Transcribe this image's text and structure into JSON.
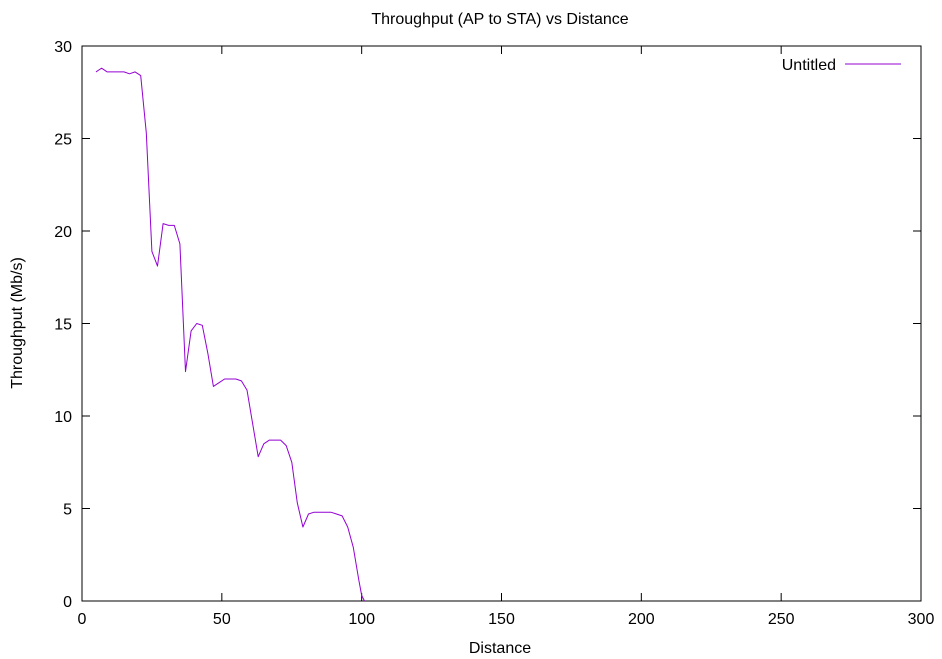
{
  "chart_data": {
    "type": "line",
    "title": "Throughput (AP to STA) vs Distance",
    "xlabel": "Distance",
    "ylabel": "Throughput (Mb/s)",
    "xlim": [
      0,
      300
    ],
    "ylim": [
      0,
      30
    ],
    "xticks": [
      "0",
      "50",
      "100",
      "150",
      "200",
      "250",
      "300"
    ],
    "yticks": [
      "0",
      "5",
      "10",
      "15",
      "20",
      "25",
      "30"
    ],
    "grid": false,
    "legend_position": "top-right",
    "series": [
      {
        "name": "Untitled",
        "color": "#9400d3",
        "x": [
          5,
          6,
          7,
          9,
          11,
          13,
          15,
          17,
          19,
          21,
          23,
          25,
          27,
          29,
          31,
          33,
          35,
          37,
          39,
          41,
          43,
          45,
          47,
          49,
          51,
          53,
          55,
          57,
          59,
          61,
          63,
          65,
          67,
          69,
          71,
          73,
          75,
          77,
          79,
          81,
          83,
          85,
          87,
          89,
          91,
          93,
          95,
          97,
          99,
          100,
          101
        ],
        "y": [
          28.6,
          28.7,
          28.8,
          28.6,
          28.6,
          28.6,
          28.6,
          28.5,
          28.6,
          28.4,
          25.3,
          18.9,
          18.1,
          20.4,
          20.3,
          20.3,
          19.3,
          12.4,
          14.6,
          15.0,
          14.9,
          13.4,
          11.6,
          11.8,
          12.0,
          12.0,
          12.0,
          11.9,
          11.4,
          9.6,
          7.8,
          8.5,
          8.7,
          8.7,
          8.7,
          8.4,
          7.5,
          5.3,
          4.0,
          4.7,
          4.8,
          4.8,
          4.8,
          4.8,
          4.7,
          4.6,
          4.0,
          2.9,
          1.1,
          0.3,
          0.0
        ]
      }
    ]
  }
}
